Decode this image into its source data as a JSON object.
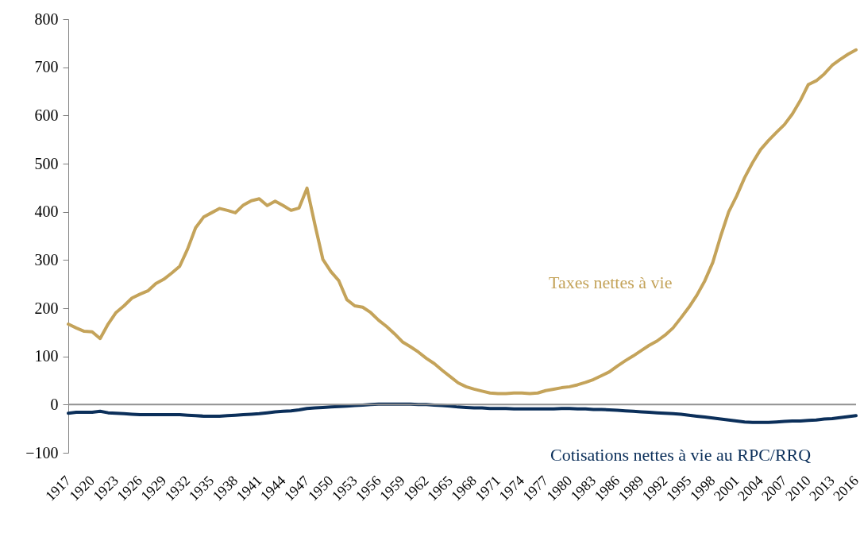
{
  "chart_data": {
    "type": "line",
    "categories": [
      "1917",
      null,
      null,
      "1920",
      null,
      null,
      "1923",
      null,
      null,
      "1926",
      null,
      null,
      "1929",
      null,
      null,
      "1932",
      null,
      null,
      "1935",
      null,
      null,
      "1938",
      null,
      null,
      "1941",
      null,
      null,
      "1944",
      null,
      null,
      "1947",
      null,
      null,
      "1950",
      null,
      null,
      "1953",
      null,
      null,
      "1956",
      null,
      null,
      "1959",
      null,
      null,
      "1962",
      null,
      null,
      "1965",
      null,
      null,
      "1968",
      null,
      null,
      "1971",
      null,
      null,
      "1974",
      null,
      null,
      "1977",
      null,
      null,
      "1980",
      null,
      null,
      "1983",
      null,
      null,
      "1986",
      null,
      null,
      "1989",
      null,
      null,
      "1992",
      null,
      null,
      "1995",
      null,
      null,
      "1998",
      null,
      null,
      "2001",
      null,
      null,
      "2004",
      null,
      null,
      "2007",
      null,
      null,
      "2010",
      null,
      null,
      "2013",
      null,
      null,
      "2016"
    ],
    "series": [
      {
        "name": "Taxes nettes à vie",
        "color": "#c4a35a",
        "values": [
          167,
          159,
          152,
          151,
          137,
          167,
          191,
          205,
          221,
          229,
          236,
          251,
          260,
          273,
          287,
          323,
          367,
          389,
          398,
          407,
          403,
          398,
          414,
          423,
          427,
          413,
          422,
          413,
          403,
          408,
          449,
          373,
          301,
          276,
          257,
          218,
          205,
          202,
          191,
          175,
          162,
          147,
          130,
          120,
          109,
          96,
          85,
          71,
          58,
          45,
          37,
          32,
          28,
          24,
          23,
          23,
          24,
          24,
          23,
          24,
          29,
          32,
          35,
          37,
          41,
          46,
          52,
          60,
          68,
          80,
          91,
          101,
          112,
          123,
          132,
          144,
          159,
          180,
          202,
          227,
          257,
          295,
          350,
          400,
          433,
          471,
          502,
          529,
          548,
          565,
          581,
          603,
          631,
          664,
          672,
          686,
          704,
          716,
          727,
          736
        ]
      },
      {
        "name": "Cotisations nettes à vie au RPC/RRQ",
        "color": "#0b2f5a",
        "values": [
          -18,
          -16,
          -16,
          -16,
          -14,
          -17,
          -18,
          -19,
          -20,
          -21,
          -21,
          -21,
          -21,
          -21,
          -21,
          -22,
          -23,
          -24,
          -24,
          -24,
          -23,
          -22,
          -21,
          -20,
          -19,
          -17,
          -15,
          -14,
          -13,
          -11,
          -8,
          -7,
          -6,
          -5,
          -4,
          -3,
          -2,
          -1,
          0,
          1,
          1,
          1,
          1,
          1,
          0,
          0,
          -1,
          -2,
          -3,
          -5,
          -6,
          -7,
          -7,
          -8,
          -8,
          -8,
          -9,
          -9,
          -9,
          -9,
          -9,
          -9,
          -8,
          -8,
          -9,
          -9,
          -10,
          -10,
          -11,
          -12,
          -13,
          -14,
          -15,
          -16,
          -17,
          -18,
          -19,
          -20,
          -22,
          -24,
          -26,
          -28,
          -30,
          -32,
          -34,
          -36,
          -37,
          -37,
          -37,
          -36,
          -35,
          -34,
          -34,
          -33,
          -32,
          -30,
          -29,
          -27,
          -25,
          -23
        ]
      }
    ],
    "ylim": [
      -100,
      800
    ],
    "yticks": [
      -100,
      0,
      100,
      200,
      300,
      400,
      500,
      600,
      700,
      800
    ],
    "ref_lines": [
      {
        "axis": "y",
        "value": 0,
        "color": "#909090"
      }
    ],
    "grid": false,
    "legend": false,
    "line_style": "solid",
    "marker": "none"
  }
}
